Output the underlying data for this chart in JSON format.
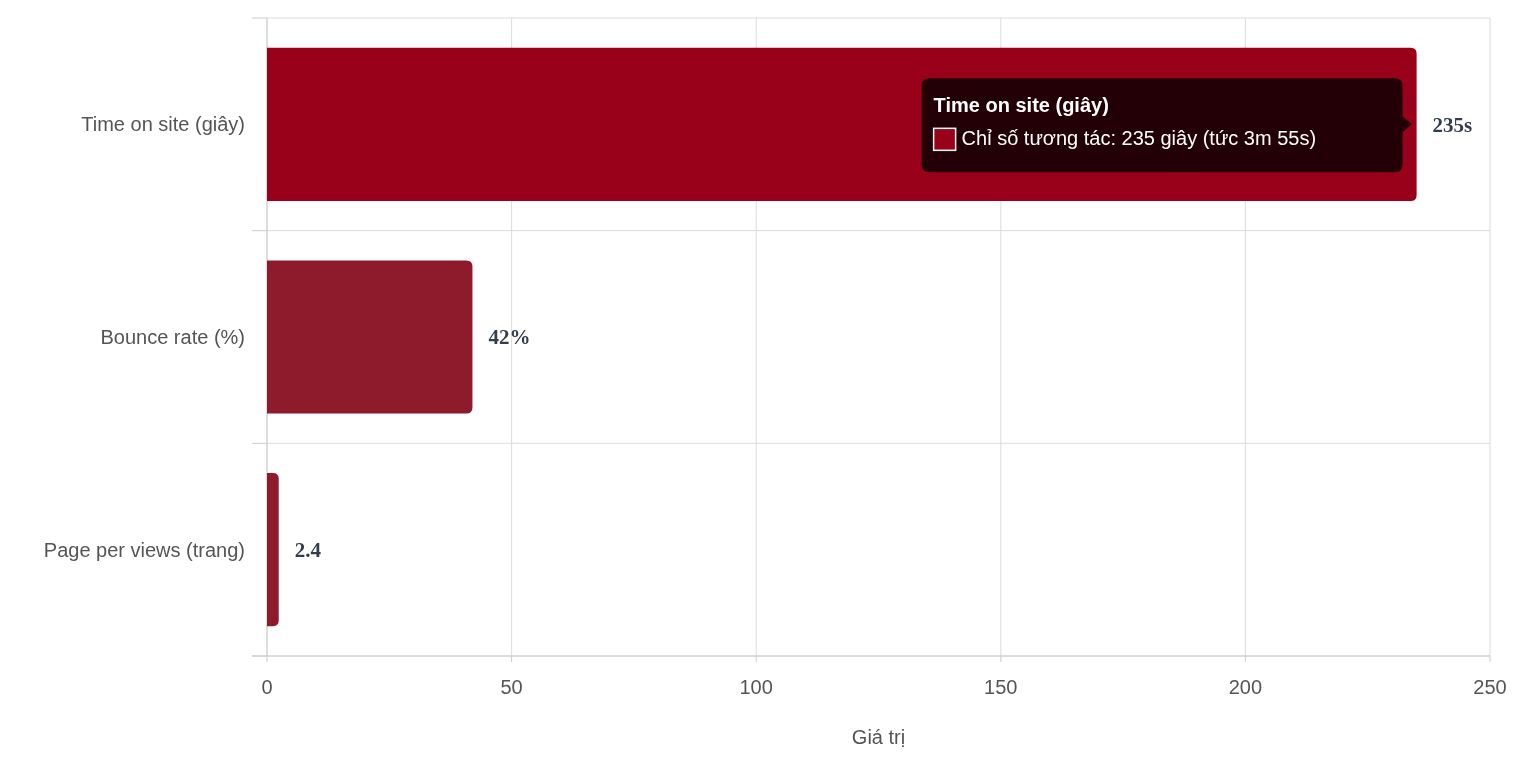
{
  "chart_data": {
    "type": "bar",
    "orientation": "horizontal",
    "xlabel": "Giá trị",
    "categories": [
      "Time on site (giây)",
      "Bounce rate (%)",
      "Page per views (trang)"
    ],
    "values": [
      235,
      42,
      2.4
    ],
    "colors": [
      "#990019",
      "#8e1b2c",
      "#8e1b2c"
    ],
    "value_labels": [
      "235s",
      "42%",
      "2.4"
    ],
    "xlim": [
      0,
      250
    ],
    "xticks": [
      0,
      50,
      100,
      150,
      200,
      250
    ],
    "grid": true,
    "annotations": [
      "Time on site (giây)",
      "Chỉ số tương tác: 235 giây (tức 3m 55s)"
    ]
  }
}
